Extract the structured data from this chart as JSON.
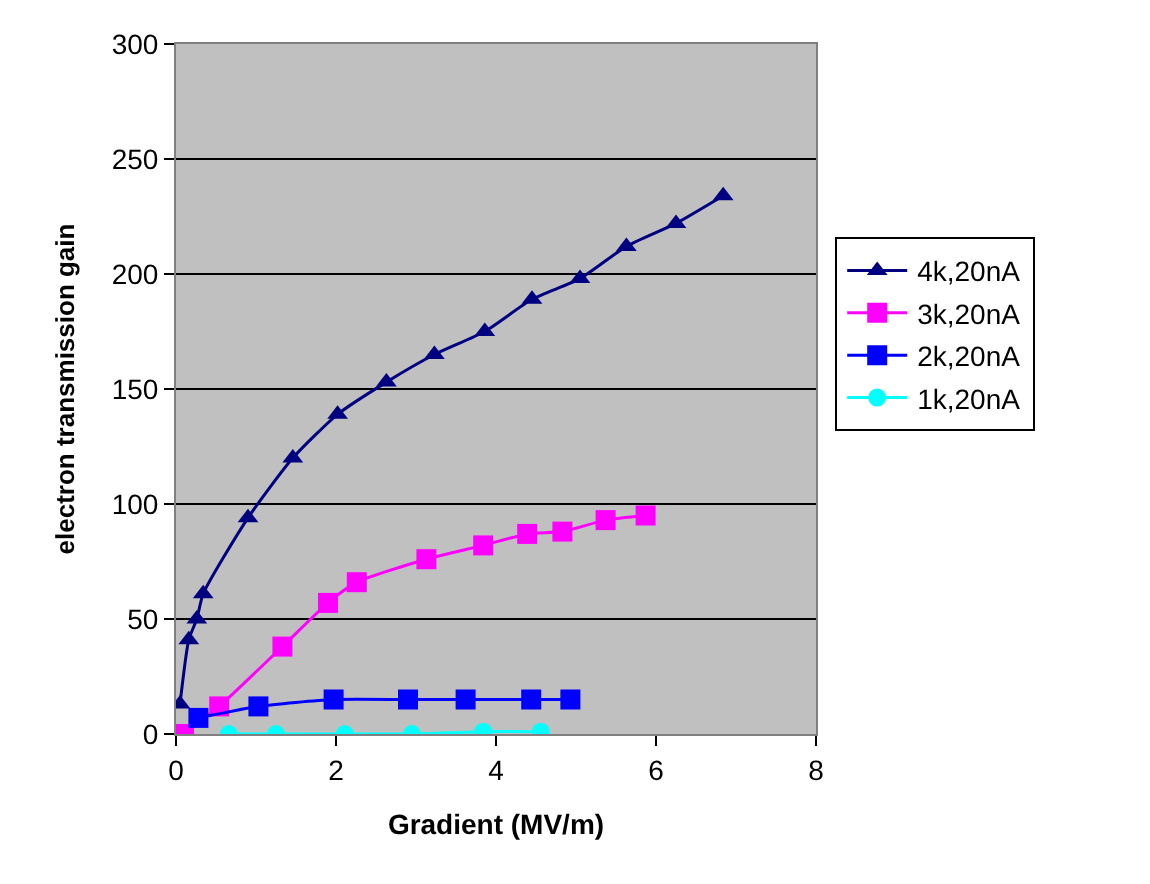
{
  "chart_data": {
    "type": "line",
    "xlabel": "Gradient (MV/m)",
    "ylabel": "electron transmission gain",
    "xlim": [
      0,
      8
    ],
    "xticks": [
      0,
      2,
      4,
      6,
      8
    ],
    "ylim": [
      0,
      300
    ],
    "yticks": [
      0,
      50,
      100,
      150,
      200,
      250,
      300
    ],
    "grid": "y",
    "legend": "right",
    "series": [
      {
        "name": "4k,20nA",
        "color": "#000080",
        "marker": "triangle",
        "x": [
          0.05,
          0.16,
          0.26,
          0.34,
          0.9,
          1.46,
          2.02,
          2.63,
          3.23,
          3.86,
          4.45,
          5.05,
          5.63,
          6.25,
          6.84
        ],
        "values": [
          13,
          41,
          50,
          61,
          94,
          120,
          139,
          153,
          165,
          175,
          189,
          198,
          212,
          222,
          234
        ]
      },
      {
        "name": "3k,20nA",
        "color": "#ff00ff",
        "marker": "square",
        "x": [
          0.1,
          0.54,
          1.33,
          1.9,
          2.26,
          3.13,
          3.84,
          4.39,
          4.83,
          5.37,
          5.87
        ],
        "values": [
          0,
          12,
          38,
          57,
          66,
          76,
          82,
          87,
          88,
          93,
          95
        ]
      },
      {
        "name": "2k,20nA",
        "color": "#0000ff",
        "marker": "square",
        "x": [
          0.28,
          1.03,
          1.97,
          2.9,
          3.62,
          4.44,
          4.93
        ],
        "values": [
          7,
          12,
          15,
          15,
          15,
          15,
          15
        ]
      },
      {
        "name": "1k,20nA",
        "color": "#00ffff",
        "marker": "circle",
        "x": [
          0.66,
          1.25,
          2.11,
          2.95,
          3.84,
          4.56
        ],
        "values": [
          0,
          0,
          0,
          0,
          1,
          1
        ]
      }
    ]
  }
}
